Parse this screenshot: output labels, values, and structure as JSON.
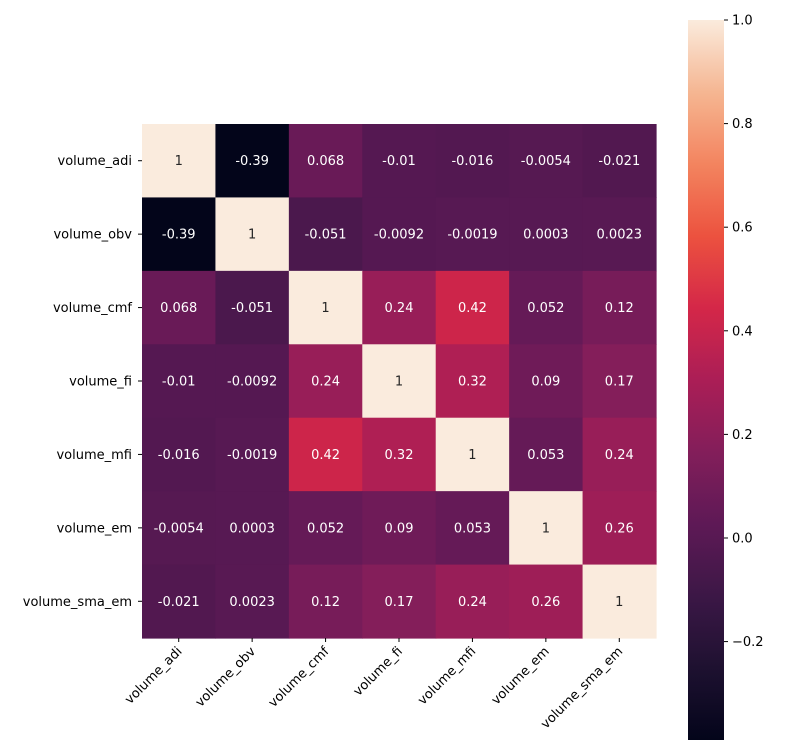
{
  "chart_data": {
    "type": "heatmap",
    "title": "",
    "xlabel": "",
    "ylabel": "",
    "row_labels": [
      "volume_adi",
      "volume_obv",
      "volume_cmf",
      "volume_fi",
      "volume_mfi",
      "volume_em",
      "volume_sma_em"
    ],
    "col_labels": [
      "volume_adi",
      "volume_obv",
      "volume_cmf",
      "volume_fi",
      "volume_mfi",
      "volume_em",
      "volume_sma_em"
    ],
    "values": [
      [
        1,
        -0.39,
        0.068,
        -0.01,
        -0.016,
        -0.0054,
        -0.021
      ],
      [
        -0.39,
        1,
        -0.051,
        -0.0092,
        -0.0019,
        0.0003,
        0.0023
      ],
      [
        0.068,
        -0.051,
        1,
        0.24,
        0.42,
        0.052,
        0.12
      ],
      [
        -0.01,
        -0.0092,
        0.24,
        1,
        0.32,
        0.09,
        0.17
      ],
      [
        -0.016,
        -0.0019,
        0.42,
        0.32,
        1,
        0.053,
        0.24
      ],
      [
        -0.0054,
        0.0003,
        0.052,
        0.09,
        0.053,
        1,
        0.26
      ],
      [
        -0.021,
        0.0023,
        0.12,
        0.17,
        0.24,
        0.26,
        1
      ]
    ],
    "value_labels": [
      [
        "1",
        "-0.39",
        "0.068",
        "-0.01",
        "-0.016",
        "-0.0054",
        "-0.021"
      ],
      [
        "-0.39",
        "1",
        "-0.051",
        "-0.0092",
        "-0.0019",
        "0.0003",
        "0.0023"
      ],
      [
        "0.068",
        "-0.051",
        "1",
        "0.24",
        "0.42",
        "0.052",
        "0.12"
      ],
      [
        "-0.01",
        "-0.0092",
        "0.24",
        "1",
        "0.32",
        "0.09",
        "0.17"
      ],
      [
        "-0.016",
        "-0.0019",
        "0.42",
        "0.32",
        "1",
        "0.053",
        "0.24"
      ],
      [
        "-0.0054",
        "0.0003",
        "0.052",
        "0.09",
        "0.053",
        "1",
        "0.26"
      ],
      [
        "-0.021",
        "0.0023",
        "0.12",
        "0.17",
        "0.24",
        "0.26",
        "1"
      ]
    ],
    "colormap": "rocket",
    "vmin": -0.39,
    "vmax": 1,
    "colorbar_ticks": [
      1.0,
      0.8,
      0.6,
      0.4,
      0.2,
      0.0,
      -0.2
    ],
    "colorbar_tick_labels": [
      "1.0",
      "0.8",
      "0.6",
      "0.4",
      "0.2",
      "0.0",
      "−0.2"
    ],
    "legend_position": "right"
  }
}
